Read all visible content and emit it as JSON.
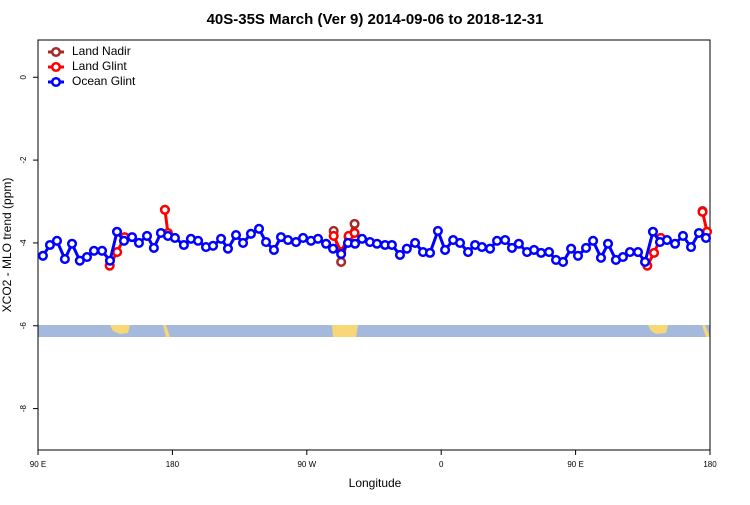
{
  "chart_data": {
    "type": "line",
    "title": "40S-35S March (Ver 9)   2014-09-06 to 2018-12-31",
    "x_label": "Longitude",
    "y_label": "XCO2 - MLO trend (ppm)",
    "xlim": [
      90,
      540
    ],
    "xticks": [
      {
        "value": 90,
        "label": "90 E"
      },
      180,
      {
        "value": 270,
        "label": "90 W"
      },
      {
        "value": 360,
        "label": "0"
      },
      {
        "value": 450,
        "label": "90 E"
      },
      {
        "value": 540,
        "label": "180"
      }
    ],
    "ylim": [
      -9,
      0.9
    ],
    "yticks": [
      0,
      -2,
      -4,
      -6,
      -8
    ],
    "legend": "top-left",
    "series": [
      {
        "name": "Land Nadir",
        "color": "#a52a2a",
        "x": [
          175,
          null,
          288,
          293,
          298,
          302,
          null,
          535
        ],
        "values": [
          -3.2,
          null,
          -3.71,
          -4.46,
          -3.86,
          -3.54,
          null,
          -3.23
        ]
      },
      {
        "name": "Land Glint",
        "color": "#ff0000",
        "x": [
          138,
          143,
          148,
          null,
          175,
          177,
          null,
          288,
          293,
          298,
          302,
          null,
          498,
          502.5,
          507,
          null,
          535,
          538
        ],
        "values": [
          -4.55,
          -4.22,
          -3.86,
          null,
          -3.2,
          -3.76,
          null,
          -3.83,
          -4.22,
          -3.83,
          -3.76,
          null,
          -4.55,
          -4.24,
          -3.88,
          null,
          -3.25,
          -3.73
        ]
      },
      {
        "name": "Ocean Glint",
        "color": "#0000ff",
        "x": [
          93.3,
          98,
          102.7,
          108,
          112.8,
          118,
          122.8,
          127.5,
          132.9,
          138.2,
          142.9,
          147.6,
          153,
          157.6,
          163,
          167.6,
          172.3,
          177,
          181.7,
          187.7,
          192.4,
          197.2,
          202.5,
          207.2,
          212.6,
          217.2,
          222.6,
          227.3,
          232.6,
          238,
          242.7,
          248,
          252.7,
          257.4,
          262.8,
          267.5,
          272.8,
          277.5,
          282.9,
          287.6,
          293,
          297.6,
          302.3,
          307,
          312.3,
          317,
          322.4,
          327,
          332.4,
          337,
          342.5,
          347.8,
          352.5,
          357.8,
          362.6,
          368,
          372.6,
          378,
          382.7,
          387.3,
          392.7,
          397.4,
          402.8,
          407.4,
          412,
          417.5,
          422.2,
          426.9,
          432.2,
          436.9,
          441.6,
          447,
          451.6,
          457,
          461.7,
          467,
          471.7,
          477,
          481.7,
          486.4,
          491.8,
          496.5,
          501.8,
          506.5,
          511.2,
          516.6,
          521.9,
          527.3,
          532.6,
          537.3
        ],
        "values": [
          -4.31,
          -4.05,
          -3.95,
          -4.39,
          -4.02,
          -4.43,
          -4.34,
          -4.19,
          -4.19,
          -4.43,
          -3.73,
          -3.95,
          -3.86,
          -4.0,
          -3.83,
          -4.12,
          -3.76,
          -3.83,
          -3.88,
          -4.05,
          -3.9,
          -3.95,
          -4.1,
          -4.07,
          -3.9,
          -4.14,
          -3.81,
          -4.0,
          -3.78,
          -3.66,
          -3.98,
          -4.17,
          -3.86,
          -3.93,
          -3.98,
          -3.88,
          -3.95,
          -3.9,
          -4.02,
          -4.14,
          -4.27,
          -4.0,
          -4.02,
          -3.9,
          -3.98,
          -4.02,
          -4.05,
          -4.05,
          -4.29,
          -4.14,
          -4.0,
          -4.22,
          -4.24,
          -3.71,
          -4.17,
          -3.93,
          -4.0,
          -4.22,
          -4.05,
          -4.1,
          -4.14,
          -3.95,
          -3.93,
          -4.12,
          -4.02,
          -4.22,
          -4.17,
          -4.24,
          -4.22,
          -4.41,
          -4.46,
          -4.14,
          -4.31,
          -4.12,
          -3.95,
          -4.36,
          -4.02,
          -4.41,
          -4.34,
          -4.22,
          -4.22,
          -4.46,
          -3.73,
          -3.98,
          -3.93,
          -4.02,
          -3.83,
          -4.1,
          -3.76,
          -3.88
        ]
      }
    ]
  }
}
